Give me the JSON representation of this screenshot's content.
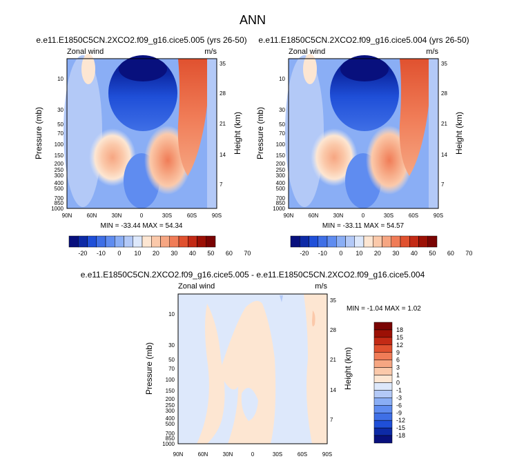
{
  "figure_title": "ANN",
  "chart_data": [
    {
      "type": "contour",
      "title": "e.e11.E1850C5CN.2XCO2.f09_g16.cice5.005 (yrs 26-50)",
      "left_label": "Zonal wind",
      "right_label": "m/s",
      "ylabel": "Pressure (mb)",
      "y2label": "Height (km)",
      "x_ticks": [
        "90N",
        "60N",
        "30N",
        "0",
        "30S",
        "60S",
        "90S"
      ],
      "p_ticks": [
        "10",
        "30",
        "50",
        "70",
        "100",
        "150",
        "200",
        "250",
        "300",
        "400",
        "500",
        "700",
        "850",
        "1000"
      ],
      "h_ticks": [
        "35",
        "28",
        "21",
        "14",
        "7"
      ],
      "min": -33.44,
      "max": 54.34,
      "stats_text": "MIN = -33.44   MAX = 54.34",
      "features": [
        {
          "kind": "NH subtropical jet",
          "lat": 30,
          "p": 200,
          "value": 25
        },
        {
          "kind": "SH subtropical jet",
          "lat": -40,
          "p": 200,
          "value": 25
        },
        {
          "kind": "SH polar night jet",
          "lat": -60,
          "p": 5,
          "value": 50
        },
        {
          "kind": "Tropical easterlies",
          "lat": 0,
          "p": 5,
          "value": -30
        }
      ]
    },
    {
      "type": "contour",
      "title": "e.e11.E1850C5CN.2XCO2.f09_g16.cice5.004 (yrs 26-50)",
      "left_label": "Zonal wind",
      "right_label": "m/s",
      "ylabel": "Pressure (mb)",
      "y2label": "Height (km)",
      "x_ticks": [
        "90N",
        "60N",
        "30N",
        "0",
        "30S",
        "60S",
        "90S"
      ],
      "p_ticks": [
        "10",
        "30",
        "50",
        "70",
        "100",
        "150",
        "200",
        "250",
        "300",
        "400",
        "500",
        "700",
        "850",
        "1000"
      ],
      "h_ticks": [
        "35",
        "28",
        "21",
        "14",
        "7"
      ],
      "min": -33.11,
      "max": 54.57,
      "stats_text": "MIN = -33.11   MAX = 54.57"
    },
    {
      "type": "contour",
      "title": "e.e11.E1850C5CN.2XCO2.f09_g16.cice5.005 - e.e11.E1850C5CN.2XCO2.f09_g16.cice5.004",
      "left_label": "Zonal wind",
      "right_label": "m/s",
      "ylabel": "Pressure (mb)",
      "y2label": "Height (km)",
      "x_ticks": [
        "90N",
        "60N",
        "30N",
        "0",
        "30S",
        "60S",
        "90S"
      ],
      "p_ticks": [
        "10",
        "30",
        "50",
        "70",
        "100",
        "150",
        "200",
        "250",
        "300",
        "400",
        "500",
        "700",
        "850",
        "1000"
      ],
      "h_ticks": [
        "35",
        "28",
        "21",
        "14",
        "7"
      ],
      "min": -1.04,
      "max": 1.02,
      "stats_text": "MIN = -1.04   MAX =  1.02"
    }
  ],
  "colorbars": {
    "horizontal": {
      "labels": [
        "-20",
        "-10",
        "0",
        "10",
        "20",
        "30",
        "40",
        "50",
        "60",
        "70"
      ],
      "colors": [
        "#08107d",
        "#0d2aa6",
        "#1f4fd8",
        "#3f6fe6",
        "#5f8cf0",
        "#8aaef5",
        "#b3c9f7",
        "#dde8fb",
        "#fde6d2",
        "#fbc9aa",
        "#f6a682",
        "#f07c57",
        "#e0512f",
        "#c32a15",
        "#9c1005",
        "#7a0403"
      ]
    },
    "vertical": {
      "labels": [
        "18",
        "15",
        "12",
        "9",
        "6",
        "3",
        "1",
        "0",
        "-1",
        "-3",
        "-6",
        "-9",
        "-12",
        "-15",
        "-18"
      ],
      "colors": [
        "#7a0403",
        "#9c1005",
        "#c32a15",
        "#e0512f",
        "#f07c57",
        "#f6a682",
        "#fbc9aa",
        "#fde6d2",
        "#dde8fb",
        "#b3c9f7",
        "#8aaef5",
        "#5f8cf0",
        "#3f6fe6",
        "#1f4fd8",
        "#0d2aa6",
        "#08107d"
      ]
    }
  }
}
